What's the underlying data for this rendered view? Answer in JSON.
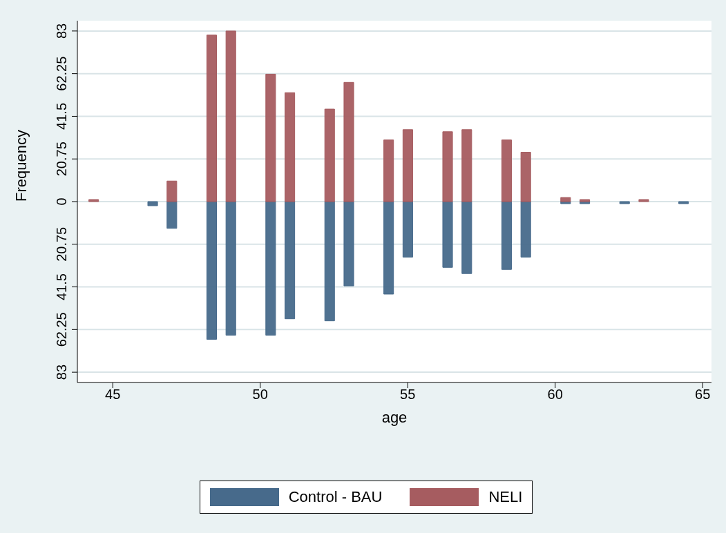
{
  "chart_data": {
    "type": "bar",
    "stacked": true,
    "xlabel": "age",
    "ylabel": "Frequency",
    "x": [
      44.35,
      46.35,
      47,
      48.35,
      49,
      50.35,
      51,
      52.35,
      53,
      54.35,
      55,
      56.35,
      57,
      58.35,
      59,
      60.35,
      61,
      62.35,
      63,
      64.35
    ],
    "series": [
      {
        "name": "Control - BAU",
        "color": "#476a8b",
        "values": [
          null,
          -2,
          -13,
          -67,
          -65,
          -65,
          -57,
          -58,
          -41,
          -45,
          -27,
          -32,
          -35,
          -33,
          -27,
          -1,
          -1,
          -1,
          null,
          -1
        ]
      },
      {
        "name": "NELI",
        "color": "#a65c60",
        "values": [
          1,
          null,
          10,
          81,
          83,
          62,
          53,
          45,
          58,
          30,
          35,
          34,
          35,
          30,
          24,
          2,
          1,
          null,
          1,
          null
        ]
      }
    ],
    "xlim": [
      43.8,
      65.3
    ],
    "xticks": [
      45,
      50,
      55,
      60,
      65
    ],
    "ylim": [
      -88,
      88
    ],
    "yticks": [
      {
        "value": -83,
        "label": "83"
      },
      {
        "value": -62.25,
        "label": "62.25"
      },
      {
        "value": -41.5,
        "label": "41.5"
      },
      {
        "value": -20.75,
        "label": "20.75"
      },
      0,
      20.75,
      41.5,
      62.25,
      83
    ],
    "grid": "y",
    "legend": "bottom"
  }
}
